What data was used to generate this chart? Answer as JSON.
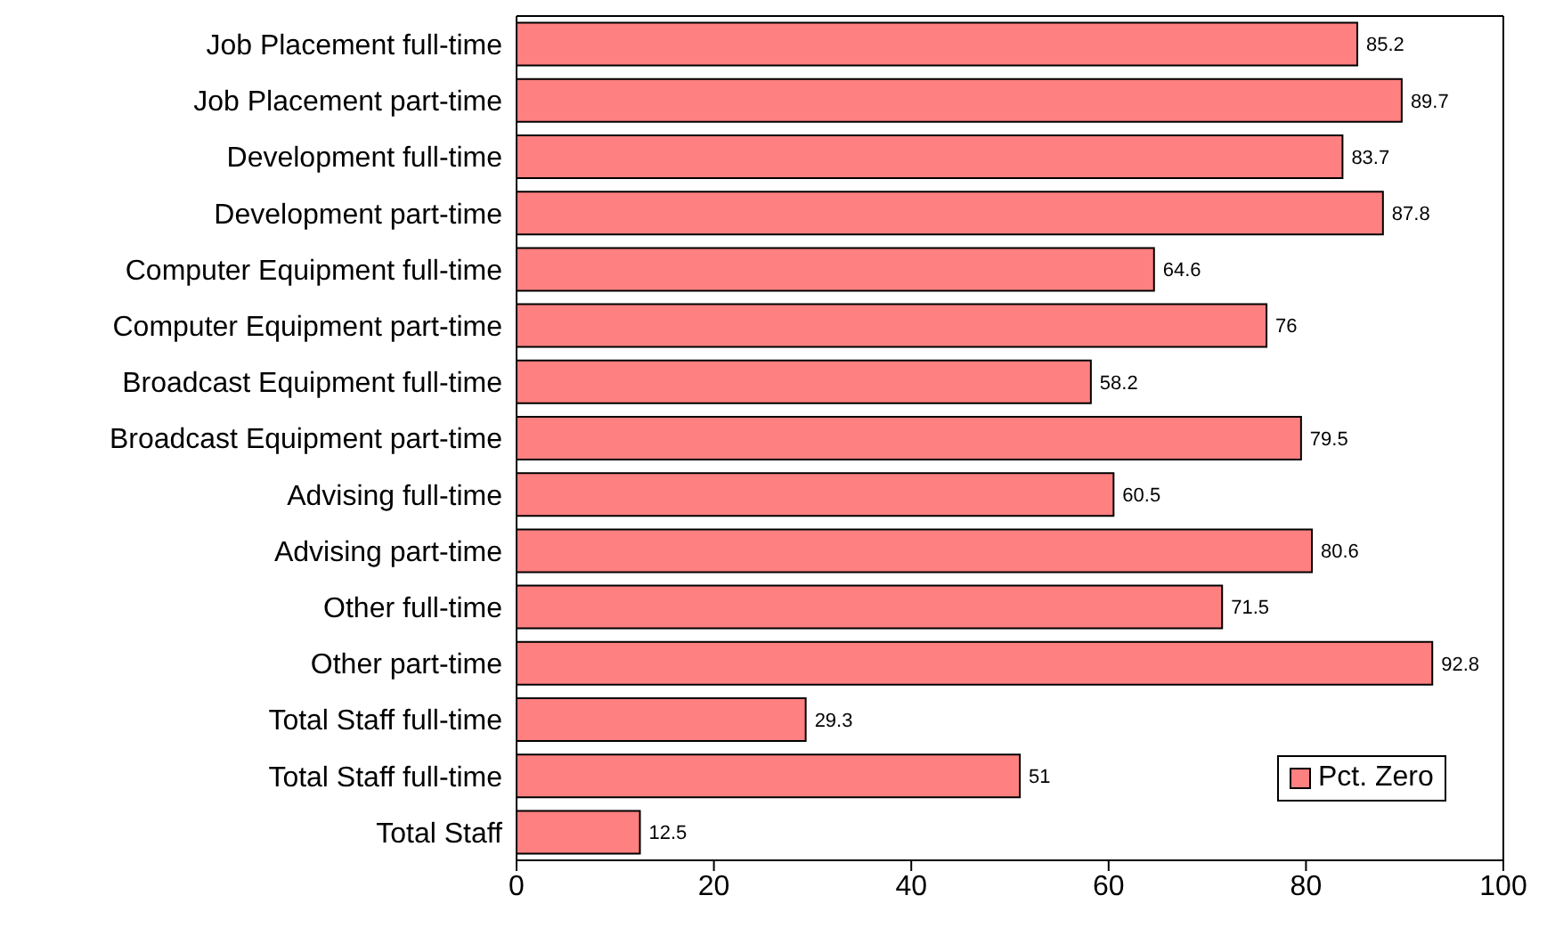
{
  "chart_data": {
    "type": "bar",
    "orientation": "horizontal",
    "categories": [
      "Job Placement full-time",
      "Job Placement part-time",
      "Development full-time",
      "Development part-time",
      "Computer Equipment full-time",
      "Computer Equipment part-time",
      "Broadcast Equipment full-time",
      "Broadcast Equipment part-time",
      "Advising full-time",
      "Advising part-time",
      "Other full-time",
      "Other part-time",
      "Total Staff full-time",
      "Total Staff full-time",
      "Total Staff"
    ],
    "series": [
      {
        "name": "Pct. Zero",
        "color": "#ff8080",
        "values": [
          85.2,
          89.7,
          83.7,
          87.8,
          64.6,
          76,
          58.2,
          79.5,
          60.5,
          80.6,
          71.5,
          92.8,
          29.3,
          51,
          12.5
        ]
      }
    ],
    "xlim": [
      0,
      100
    ],
    "xticks": [
      0,
      20,
      40,
      60,
      80,
      100
    ],
    "data_labels": true,
    "legend": "bottom right",
    "grid": false
  }
}
